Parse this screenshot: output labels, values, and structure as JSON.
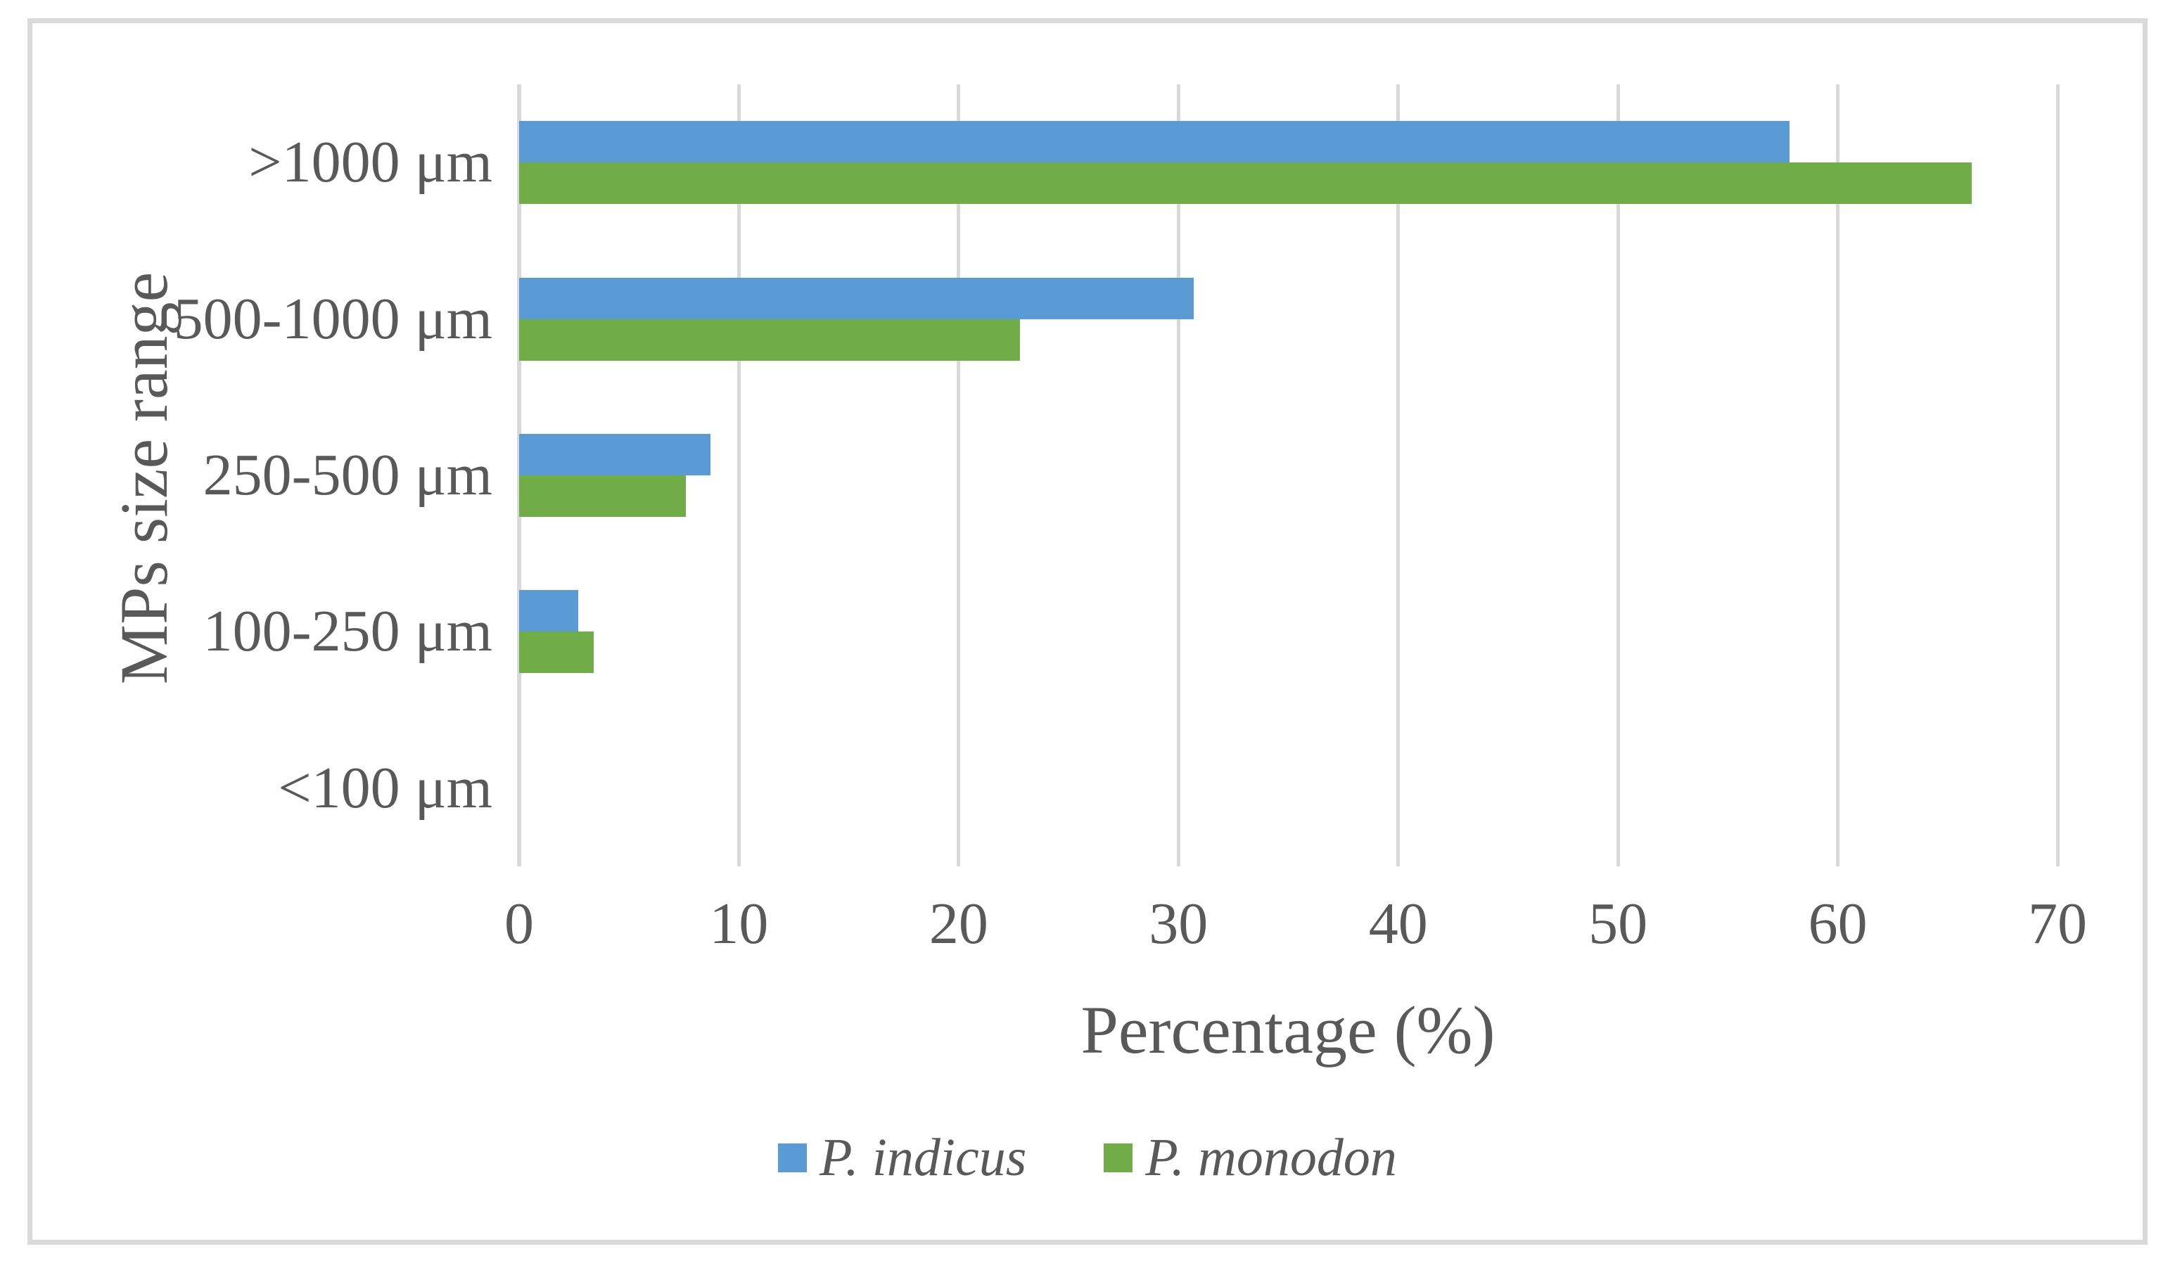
{
  "chart_data": {
    "type": "bar",
    "orientation": "horizontal",
    "title": "",
    "categories": [
      ">1000 μm",
      "500-1000 μm",
      "250-500 μm",
      "100-250 μm",
      "<100 μm"
    ],
    "series": [
      {
        "name": "P. indicus",
        "color": "#5B9BD5",
        "values": [
          57.8,
          30.7,
          8.7,
          2.7,
          0
        ]
      },
      {
        "name": "P. monodon",
        "color": "#70AD47",
        "values": [
          66.1,
          22.8,
          7.6,
          3.4,
          0
        ]
      }
    ],
    "xlabel": "Percentage (%)",
    "ylabel": "MPs size range",
    "xlim": [
      0,
      70
    ],
    "xticks": [
      0,
      10,
      20,
      30,
      40,
      50,
      60,
      70
    ],
    "grid": true,
    "legend_position": "bottom-center"
  },
  "colors": {
    "background": "#FFFFFF",
    "frame": "#D9D9D9",
    "gridline": "#D9D9D9",
    "text": "#595959"
  }
}
